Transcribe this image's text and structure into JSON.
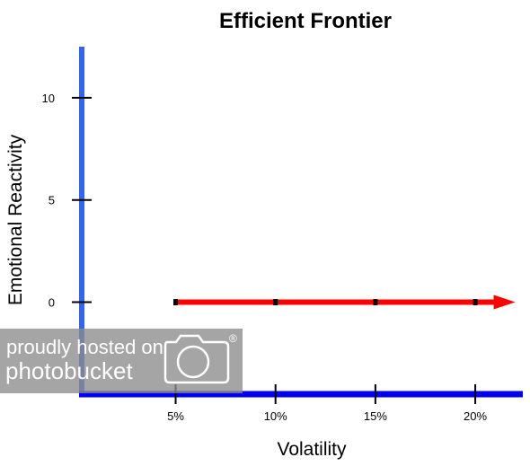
{
  "chart_data": {
    "type": "line",
    "title": "Efficient Frontier",
    "xlabel": "Volatility",
    "ylabel": "Emotional Reactivity",
    "x_ticks": [
      {
        "value": 5,
        "label": "5%"
      },
      {
        "value": 10,
        "label": "10%"
      },
      {
        "value": 15,
        "label": "15%"
      },
      {
        "value": 20,
        "label": "20%"
      }
    ],
    "y_ticks": [
      {
        "value": 0,
        "label": "0"
      },
      {
        "value": 5,
        "label": "5"
      },
      {
        "value": 10,
        "label": "10"
      }
    ],
    "xlim": [
      0.3,
      22.2
    ],
    "ylim": [
      -4.5,
      12.5
    ],
    "series": [
      {
        "x": [
          5,
          10,
          15,
          20,
          22
        ],
        "y": [
          0,
          0,
          0,
          0,
          0
        ],
        "color": "#ff0000",
        "arrow_end": true
      }
    ],
    "colors": {
      "y_axis": "#3366ee",
      "x_axis": "#0000ee",
      "series": "#ff0000",
      "markers": "#000000"
    },
    "grid": false,
    "legend": "none"
  },
  "watermark": {
    "line1": "proudly hosted on",
    "line2": "photobucket",
    "registered": "®",
    "icon": "camera-icon"
  }
}
